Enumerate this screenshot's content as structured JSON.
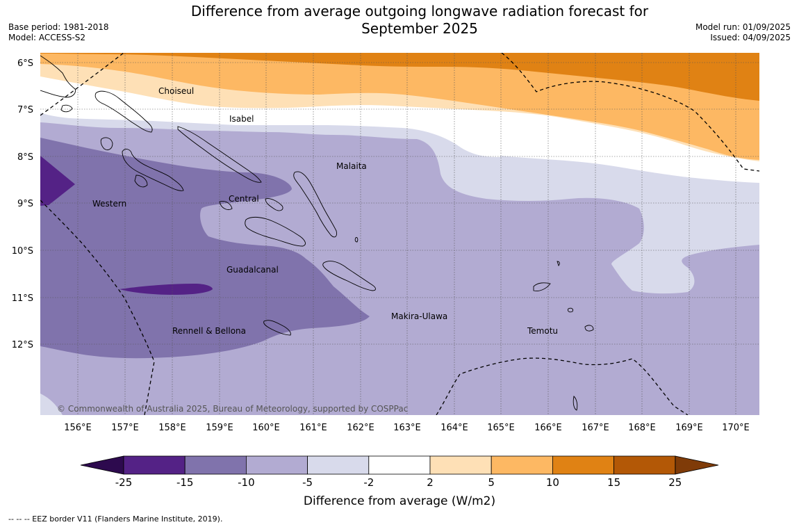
{
  "title_line1": "Difference from average outgoing longwave radiation forecast for",
  "title_line2": "September 2025",
  "left_meta": {
    "base_period": "Base period: 1981-2018",
    "model": "Model: ACCESS-S2"
  },
  "right_meta": {
    "model_run": "Model run: 01/09/2025",
    "issued": "Issued: 04/09/2025"
  },
  "map": {
    "lon_ticks": [
      "156°E",
      "157°E",
      "158°E",
      "159°E",
      "160°E",
      "161°E",
      "162°E",
      "163°E",
      "164°E",
      "165°E",
      "166°E",
      "167°E",
      "168°E",
      "169°E",
      "170°E"
    ],
    "lat_ticks": [
      "6°S",
      "7°S",
      "8°S",
      "9°S",
      "10°S",
      "11°S",
      "12°S"
    ],
    "regions": [
      {
        "name": "Choiseul"
      },
      {
        "name": "Isabel"
      },
      {
        "name": "Malaita"
      },
      {
        "name": "Western"
      },
      {
        "name": "Central"
      },
      {
        "name": "Guadalcanal"
      },
      {
        "name": "Makira-Ulawa"
      },
      {
        "name": "Rennell & Bellona"
      },
      {
        "name": "Temotu"
      }
    ],
    "copyright": "© Commonwealth of Australia 2025, Bureau of Meteorology, supported by COSPPac"
  },
  "colorbar": {
    "label": "Difference from average (W/m2)",
    "ticks": [
      "-25",
      "-15",
      "-10",
      "-5",
      "-2",
      "2",
      "5",
      "10",
      "15",
      "25"
    ],
    "colors": {
      "below": "#2d0a4e",
      "c1": "#542286",
      "c2": "#8073ac",
      "c3": "#b2abd2",
      "c4": "#d8daeb",
      "c5": "#ffffff",
      "c6": "#fee0b6",
      "c7": "#fdb863",
      "c8": "#e08214",
      "c9": "#b35806",
      "above": "#7f3b08"
    }
  },
  "footnote": "--  --  -- EEZ border V11 (Flanders Marine Institute, 2019)."
}
